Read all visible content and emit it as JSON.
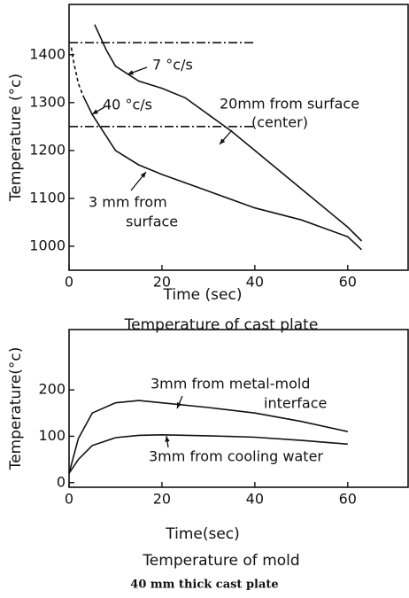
{
  "chart_data": [
    {
      "type": "line",
      "title": "Temperature of cast plate",
      "xlabel": "Time (sec)",
      "ylabel": "Temperature (°c)",
      "xlim": [
        0,
        73
      ],
      "ylim": [
        950,
        1505
      ],
      "xticks": [
        0,
        20,
        40,
        60
      ],
      "yticks": [
        1000,
        1100,
        1200,
        1300,
        1400
      ],
      "series": [
        {
          "color": "#111",
          "style": "solid",
          "x": [
            5.5,
            8,
            10,
            15,
            20,
            25,
            30,
            35,
            40,
            50,
            60,
            63
          ],
          "values": [
            1463,
            1410,
            1376,
            1345,
            1330,
            1310,
            1275,
            1240,
            1200,
            1120,
            1040,
            1011
          ]
        },
        {
          "color": "#111",
          "style": "dashed",
          "x": [
            0.5,
            1,
            2,
            3
          ],
          "values": [
            1415,
            1385,
            1340,
            1315
          ]
        },
        {
          "color": "#111",
          "style": "solid",
          "x": [
            3,
            5,
            10,
            15,
            20,
            30,
            40,
            50,
            60,
            63
          ],
          "values": [
            1315,
            1275,
            1200,
            1170,
            1150,
            1115,
            1080,
            1055,
            1020,
            993
          ]
        },
        {
          "color": "#111",
          "style": "dashdot",
          "x": [
            0,
            40
          ],
          "values": [
            1425,
            1425
          ]
        },
        {
          "color": "#111",
          "style": "dashdot",
          "x": [
            0,
            40
          ],
          "values": [
            1250,
            1250
          ]
        }
      ],
      "annotations": [
        "7 °c/s",
        "40 °c/s",
        "20mm from surface",
        "(center)",
        "3 mm from",
        "surface"
      ]
    },
    {
      "type": "line",
      "title": "Temperature of mold",
      "xlabel": "Time(sec)",
      "ylabel": "Temperature(°c)",
      "xlim": [
        0,
        73
      ],
      "ylim": [
        -10,
        330
      ],
      "xticks": [
        0,
        20,
        40,
        60
      ],
      "yticks": [
        0,
        100,
        200
      ],
      "series": [
        {
          "color": "#111",
          "style": "solid",
          "x": [
            0,
            2,
            5,
            10,
            15,
            20,
            30,
            40,
            50,
            60
          ],
          "values": [
            20,
            95,
            150,
            172,
            177,
            172,
            162,
            150,
            132,
            110
          ]
        },
        {
          "color": "#111",
          "style": "solid",
          "x": [
            0,
            2,
            5,
            10,
            15,
            20,
            30,
            40,
            50,
            60
          ],
          "values": [
            20,
            50,
            80,
            97,
            102,
            103,
            101,
            98,
            91,
            83
          ]
        }
      ],
      "annotations": [
        "3mm from metal-mold",
        "interface",
        "3mm from cooling water"
      ]
    }
  ],
  "caption": "40 mm thick cast plate"
}
